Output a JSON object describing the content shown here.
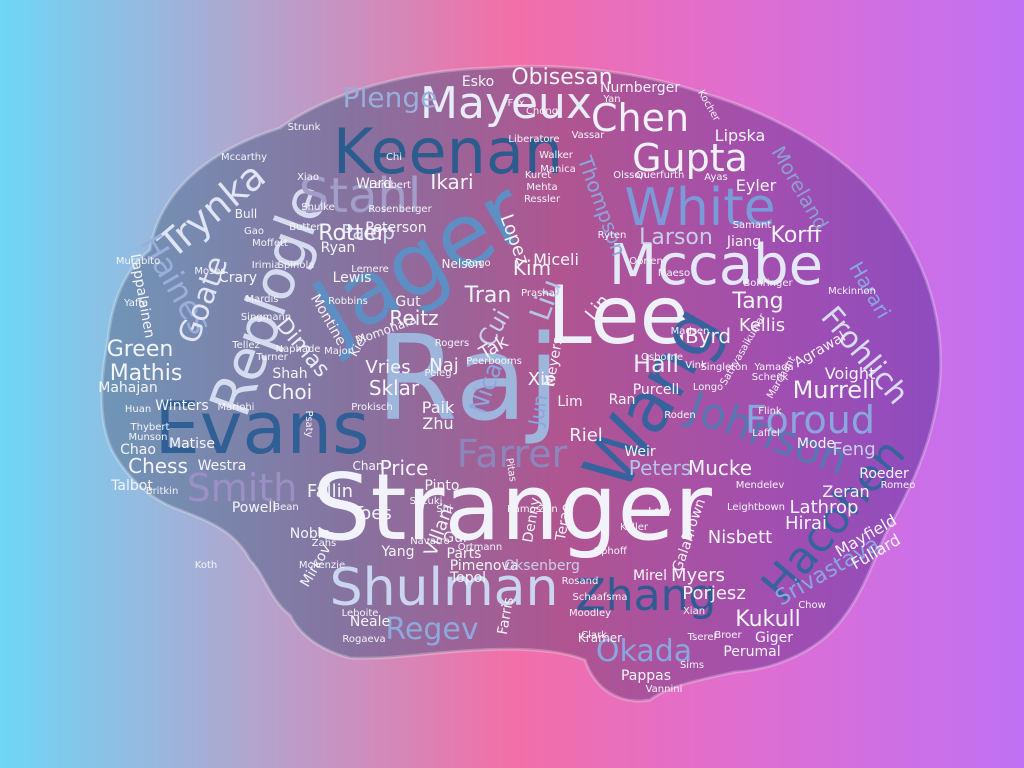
{
  "words": [
    {
      "text": "Stranger",
      "color": "#f2f2fa"
    },
    {
      "text": "Raj",
      "color": "#9fb6dc"
    },
    {
      "text": "Jager",
      "color": "#5d8fc4"
    },
    {
      "text": "Lee",
      "color": "#eef0fa"
    },
    {
      "text": "Wang",
      "color": "#36629e"
    },
    {
      "text": "Evans",
      "color": "#2f5f95"
    },
    {
      "text": "Keenan",
      "color": "#2c5b8e"
    },
    {
      "text": "Mccabe",
      "color": "#e3e7f7"
    },
    {
      "text": "Replogle",
      "color": "#d6dcf0"
    },
    {
      "text": "Shulman",
      "color": "#cad6f0"
    },
    {
      "text": "Mayeux",
      "color": "#e8ecf8"
    },
    {
      "text": "White",
      "color": "#7a9ad8"
    },
    {
      "text": "Stahl",
      "color": "#a39dc9"
    },
    {
      "text": "Gupta",
      "color": "#f1f1fa"
    },
    {
      "text": "Chen",
      "color": "#f1f1fa"
    },
    {
      "text": "Johnson",
      "color": "#5876b0"
    },
    {
      "text": "Foroud",
      "color": "#8aa6df"
    },
    {
      "text": "Zhang",
      "color": "#2f5a92"
    },
    {
      "text": "Hacohen",
      "color": "#36629e"
    },
    {
      "text": "Farrer",
      "color": "#8c86bc"
    },
    {
      "text": "Smith",
      "color": "#9b8fc4"
    },
    {
      "text": "Trynka",
      "color": "#e0e4f5"
    },
    {
      "text": "Haines",
      "color": "#9aaedc"
    },
    {
      "text": "Goate",
      "color": "#e0e4f5"
    },
    {
      "text": "Frohlich",
      "color": "#d8dcf0"
    },
    {
      "text": "Regev",
      "color": "#8ea9dc"
    },
    {
      "text": "Okada",
      "color": "#8aa6df"
    },
    {
      "text": "Plenge",
      "color": "#9aaedc"
    },
    {
      "text": "Obisesan",
      "color": "#f4f4fb"
    },
    {
      "text": "Murrell",
      "color": "#f1f1fa"
    },
    {
      "text": "Kukull",
      "color": "#f4f4fb"
    },
    {
      "text": "Korff",
      "color": "#f4f4fb"
    },
    {
      "text": "Moreland",
      "color": "#8c9fd0"
    },
    {
      "text": "Green",
      "color": "#f4f4fb"
    },
    {
      "text": "Mathis",
      "color": "#f4f4fb"
    },
    {
      "text": "Ikari",
      "color": "#f4f4fb"
    },
    {
      "text": "Kim",
      "color": "#f4f4fb"
    },
    {
      "text": "Tang",
      "color": "#f4f4fb"
    },
    {
      "text": "Larson",
      "color": "#c8cfe8"
    },
    {
      "text": "Hall",
      "color": "#e8ecf8"
    },
    {
      "text": "Byrd",
      "color": "#f4f4fb"
    },
    {
      "text": "Cui",
      "color": "#c8cfe8"
    },
    {
      "text": "Liu",
      "color": "#b4c3e6"
    },
    {
      "text": "Tran",
      "color": "#eef0fa"
    },
    {
      "text": "Dimas",
      "color": "#e8ecf8"
    },
    {
      "text": "Reitz",
      "color": "#f4f4fb"
    },
    {
      "text": "Sklar",
      "color": "#f4f4fb"
    },
    {
      "text": "Choi",
      "color": "#f4f4fb"
    },
    {
      "text": "Chess",
      "color": "#f4f4fb"
    },
    {
      "text": "Palop",
      "color": "#d6dcf0"
    },
    {
      "text": "Lopez",
      "color": "#f4f4fb"
    },
    {
      "text": "Kellis",
      "color": "#f4f4fb"
    },
    {
      "text": "Lin",
      "color": "#f4f4fb"
    },
    {
      "text": "Naj",
      "color": "#f4f4fb"
    },
    {
      "text": "Nica",
      "color": "#8aa6df"
    },
    {
      "text": "Tak",
      "color": "#f4f4fb"
    },
    {
      "text": "Vries",
      "color": "#f4f4fb"
    },
    {
      "text": "Xie",
      "color": "#f4f4fb"
    },
    {
      "text": "Jun",
      "color": "#8aa6df"
    },
    {
      "text": "Paik",
      "color": "#f4f4fb"
    },
    {
      "text": "Zhu",
      "color": "#f4f4fb"
    },
    {
      "text": "Riel",
      "color": "#f4f4fb"
    },
    {
      "text": "Price",
      "color": "#f4f4fb"
    },
    {
      "text": "Peters",
      "color": "#b4c3e6"
    },
    {
      "text": "Mucke",
      "color": "#f4f4fb"
    },
    {
      "text": "Fallin",
      "color": "#f4f4fb"
    },
    {
      "text": "Villani",
      "color": "#f4f4fb"
    },
    {
      "text": "Toes",
      "color": "#f4f4fb"
    },
    {
      "text": "Nisbett",
      "color": "#f4f4fb"
    },
    {
      "text": "Myers",
      "color": "#f4f4fb"
    },
    {
      "text": "Porjesz",
      "color": "#f4f4fb"
    },
    {
      "text": "Srivastava",
      "color": "#8aa6df"
    },
    {
      "text": "Mayfield",
      "color": "#f4f4fb"
    },
    {
      "text": "Fullard",
      "color": "#f4f4fb"
    },
    {
      "text": "Lathrop",
      "color": "#f4f4fb"
    },
    {
      "text": "Hirai",
      "color": "#f4f4fb"
    },
    {
      "text": "Zeran",
      "color": "#f4f4fb"
    },
    {
      "text": "Roeder",
      "color": "#f4f4fb"
    },
    {
      "text": "Mode",
      "color": "#f4f4fb"
    },
    {
      "text": "Feng",
      "color": "#c8cfe8"
    },
    {
      "text": "Voight",
      "color": "#f4f4fb"
    },
    {
      "text": "Agrawal",
      "color": "#f4f4fb"
    },
    {
      "text": "Harari",
      "color": "#8aa6df"
    },
    {
      "text": "Eyler",
      "color": "#f4f4fb"
    },
    {
      "text": "Jiang",
      "color": "#f4f4fb"
    },
    {
      "text": "Thompson",
      "color": "#8aa6df"
    },
    {
      "text": "Miceli",
      "color": "#f4f4fb"
    },
    {
      "text": "Lipska",
      "color": "#f4f4fb"
    },
    {
      "text": "Esko",
      "color": "#f4f4fb"
    },
    {
      "text": "Nurnberger",
      "color": "#f4f4fb"
    },
    {
      "text": "Ward",
      "color": "#f4f4fb"
    },
    {
      "text": "Peterson",
      "color": "#f4f4fb"
    },
    {
      "text": "Ryan",
      "color": "#f4f4fb"
    },
    {
      "text": "Lewis",
      "color": "#f4f4fb"
    },
    {
      "text": "Gut",
      "color": "#f4f4fb"
    },
    {
      "text": "Crary",
      "color": "#f4f4fb"
    },
    {
      "text": "Mahajan",
      "color": "#f4f4fb"
    },
    {
      "text": "Lappalainen",
      "color": "#f4f4fb"
    },
    {
      "text": "Shah",
      "color": "#f4f4fb"
    },
    {
      "text": "Winters",
      "color": "#f4f4fb"
    },
    {
      "text": "Matise",
      "color": "#f4f4fb"
    },
    {
      "text": "Chao",
      "color": "#f4f4fb"
    },
    {
      "text": "Talbot",
      "color": "#f4f4fb"
    },
    {
      "text": "Westra",
      "color": "#f4f4fb"
    },
    {
      "text": "Powell",
      "color": "#f4f4fb"
    },
    {
      "text": "Noble",
      "color": "#f4f4fb"
    },
    {
      "text": "Mirkov",
      "color": "#f4f4fb"
    },
    {
      "text": "Neale",
      "color": "#f4f4fb"
    },
    {
      "text": "Topol",
      "color": "#f4f4fb"
    },
    {
      "text": "Parts",
      "color": "#f4f4fb"
    },
    {
      "text": "Pimenova",
      "color": "#f4f4fb"
    },
    {
      "text": "Oksenberg",
      "color": "#c8cfe8"
    },
    {
      "text": "Farris",
      "color": "#f4f4fb"
    },
    {
      "text": "Mirel",
      "color": "#f4f4fb"
    },
    {
      "text": "Perumal",
      "color": "#f4f4fb"
    },
    {
      "text": "Giger",
      "color": "#f4f4fb"
    },
    {
      "text": "Pappas",
      "color": "#f4f4fb"
    },
    {
      "text": "Pinto",
      "color": "#f4f4fb"
    },
    {
      "text": "Purcell",
      "color": "#f4f4fb"
    },
    {
      "text": "Yang",
      "color": "#f4f4fb"
    },
    {
      "text": "Gur",
      "color": "#f4f4fb"
    },
    {
      "text": "Weir",
      "color": "#f4f4fb"
    },
    {
      "text": "Lim",
      "color": "#f4f4fb"
    },
    {
      "text": "Ran",
      "color": "#f4f4fb"
    },
    {
      "text": "Galan",
      "color": "#f4f4fb"
    },
    {
      "text": "Brown",
      "color": "#f4f4fb"
    },
    {
      "text": "Terao",
      "color": "#f4f4fb"
    },
    {
      "text": "Denny",
      "color": "#f4f4fb"
    },
    {
      "text": "Meyers",
      "color": "#f4f4fb"
    },
    {
      "text": "Montine",
      "color": "#f4f4fb"
    },
    {
      "text": "Momohara",
      "color": "#f4f4fb"
    },
    {
      "text": "Kiel",
      "color": "#f4f4fb"
    },
    {
      "text": "Chan",
      "color": "#f4f4fb"
    },
    {
      "text": "Nelson",
      "color": "#f4f4fb"
    },
    {
      "text": "Bull",
      "color": "#f4f4fb"
    },
    {
      "text": "Kramer",
      "color": "#f4f4fb"
    },
    {
      "text": "Clark",
      "color": "#f4f4fb"
    },
    {
      "text": "Sims",
      "color": "#f4f4fb"
    },
    {
      "text": "Vannini",
      "color": "#f4f4fb"
    },
    {
      "text": "Singmann",
      "color": "#f4f4fb"
    },
    {
      "text": "Moffett",
      "color": "#f4f4fb"
    },
    {
      "text": "Murabito",
      "color": "#f4f4fb"
    },
    {
      "text": "Strunk",
      "color": "#f4f4fb"
    },
    {
      "text": "Mccarthy",
      "color": "#f4f4fb"
    },
    {
      "text": "Liberatore",
      "color": "#f4f4fb"
    },
    {
      "text": "Vassar",
      "color": "#f4f4fb"
    },
    {
      "text": "Kocher",
      "color": "#f4f4fb"
    },
    {
      "text": "Walker",
      "color": "#f4f4fb"
    },
    {
      "text": "Mehta",
      "color": "#f4f4fb"
    },
    {
      "text": "Ressler",
      "color": "#f4f4fb"
    },
    {
      "text": "Olsson",
      "color": "#f4f4fb"
    },
    {
      "text": "Querfurth",
      "color": "#f4f4fb"
    },
    {
      "text": "Ryten",
      "color": "#f4f4fb"
    },
    {
      "text": "Obrien",
      "color": "#f4f4fb"
    },
    {
      "text": "Maeso",
      "color": "#f4f4fb"
    },
    {
      "text": "Madsen",
      "color": "#f4f4fb"
    },
    {
      "text": "Osborne",
      "color": "#f4f4fb"
    },
    {
      "text": "Vink",
      "color": "#f4f4fb"
    },
    {
      "text": "Longo",
      "color": "#f4f4fb"
    },
    {
      "text": "Roden",
      "color": "#f4f4fb"
    },
    {
      "text": "Laffel",
      "color": "#f4f4fb"
    },
    {
      "text": "Romeo",
      "color": "#f4f4fb"
    },
    {
      "text": "Mendelev",
      "color": "#f4f4fb"
    },
    {
      "text": "Leightbown",
      "color": "#f4f4fb"
    },
    {
      "text": "Keller",
      "color": "#f4f4fb"
    },
    {
      "text": "Levy",
      "color": "#f4f4fb"
    },
    {
      "text": "Ophoff",
      "color": "#f4f4fb"
    },
    {
      "text": "Xian",
      "color": "#f4f4fb"
    },
    {
      "text": "Broer",
      "color": "#f4f4fb"
    },
    {
      "text": "Tserel",
      "color": "#f4f4fb"
    },
    {
      "text": "Chow",
      "color": "#f4f4fb"
    },
    {
      "text": "Moodley",
      "color": "#f4f4fb"
    },
    {
      "text": "Schaafsma",
      "color": "#f4f4fb"
    },
    {
      "text": "Rosand",
      "color": "#f4f4fb"
    },
    {
      "text": "Navarro",
      "color": "#f4f4fb"
    },
    {
      "text": "Ortmann",
      "color": "#f4f4fb"
    },
    {
      "text": "Bean",
      "color": "#f4f4fb"
    },
    {
      "text": "Zahs",
      "color": "#f4f4fb"
    },
    {
      "text": "Mckenzie",
      "color": "#f4f4fb"
    },
    {
      "text": "Leboite",
      "color": "#f4f4fb"
    },
    {
      "text": "Rogaeva",
      "color": "#f4f4fb"
    },
    {
      "text": "Mariohi",
      "color": "#f4f4fb"
    },
    {
      "text": "Munson",
      "color": "#f4f4fb"
    },
    {
      "text": "Thybert",
      "color": "#f4f4fb"
    },
    {
      "text": "Huan",
      "color": "#f4f4fb"
    },
    {
      "text": "Britkin",
      "color": "#f4f4fb"
    },
    {
      "text": "Tellez",
      "color": "#f4f4fb"
    },
    {
      "text": "Turner",
      "color": "#f4f4fb"
    },
    {
      "text": "Naphade",
      "color": "#f4f4fb"
    },
    {
      "text": "Major",
      "color": "#f4f4fb"
    },
    {
      "text": "Rogers",
      "color": "#f4f4fb"
    },
    {
      "text": "Peerbooms",
      "color": "#f4f4fb"
    },
    {
      "text": "Peleg",
      "color": "#f4f4fb"
    },
    {
      "text": "Prokisch",
      "color": "#f4f4fb"
    },
    {
      "text": "Psaty",
      "color": "#f4f4fb"
    },
    {
      "text": "Suzuki",
      "color": "#f4f4fb"
    },
    {
      "text": "Shi",
      "color": "#f4f4fb"
    },
    {
      "text": "Zon",
      "color": "#f4f4fb"
    },
    {
      "text": "Ramos",
      "color": "#f4f4fb"
    },
    {
      "text": "Pitas",
      "color": "#f4f4fb"
    },
    {
      "text": "Koth",
      "color": "#f4f4fb"
    },
    {
      "text": "Irimia",
      "color": "#f4f4fb"
    },
    {
      "text": "Mardis",
      "color": "#f4f4fb"
    },
    {
      "text": "Moses",
      "color": "#f4f4fb"
    },
    {
      "text": "Gao",
      "color": "#f4f4fb"
    },
    {
      "text": "Yaffe",
      "color": "#f4f4fb"
    },
    {
      "text": "Shulke",
      "color": "#f4f4fb"
    },
    {
      "text": "Xiao",
      "color": "#f4f4fb"
    },
    {
      "text": "Butten",
      "color": "#f4f4fb"
    },
    {
      "text": "Lemere",
      "color": "#f4f4fb"
    },
    {
      "text": "Rago",
      "color": "#f4f4fb"
    },
    {
      "text": "Yan",
      "color": "#f4f4fb"
    },
    {
      "text": "Chong",
      "color": "#f4f4fb"
    },
    {
      "text": "Fox",
      "color": "#f4f4fb"
    },
    {
      "text": "Manica",
      "color": "#f4f4fb"
    },
    {
      "text": "Kuret",
      "color": "#f4f4fb"
    },
    {
      "text": "Chi",
      "color": "#f4f4fb"
    },
    {
      "text": "Ayas",
      "color": "#f4f4fb"
    },
    {
      "text": "Samant",
      "color": "#f4f4fb"
    },
    {
      "text": "Schenk",
      "color": "#f4f4fb"
    },
    {
      "text": "Singleton",
      "color": "#f4f4fb"
    },
    {
      "text": "Sathyasaikumar",
      "color": "#f4f4fb"
    },
    {
      "text": "Yamada",
      "color": "#f4f4fb"
    },
    {
      "text": "Mckinnon",
      "color": "#f4f4fb"
    },
    {
      "text": "Marchant",
      "color": "#f4f4fb"
    },
    {
      "text": "Flink",
      "color": "#f4f4fb"
    },
    {
      "text": "Bohringer",
      "color": "#f4f4fb"
    },
    {
      "text": "Robbins",
      "color": "#f4f4fb"
    },
    {
      "text": "Lambert",
      "color": "#f4f4fb"
    },
    {
      "text": "Rosenberger",
      "color": "#f4f4fb"
    },
    {
      "text": "Spinola",
      "color": "#f4f4fb"
    },
    {
      "text": "Prashar",
      "color": "#f4f4fb"
    },
    {
      "text": "Rotter",
      "color": "#f4f4fb"
    },
    {
      "text": "Dyson",
      "color": "#f4f4fb"
    },
    {
      "text": "Plenge",
      "color": "#9aaedc"
    }
  ]
}
